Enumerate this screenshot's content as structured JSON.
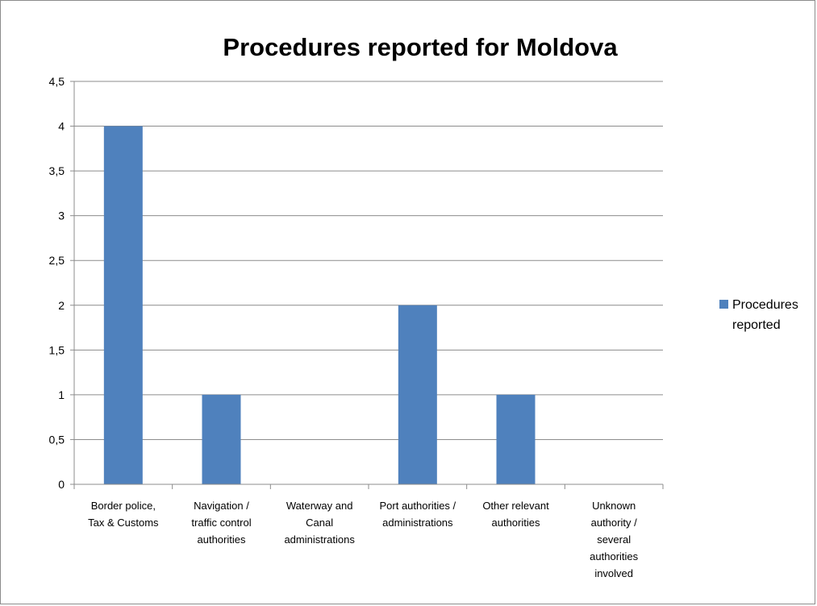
{
  "chart_data": {
    "type": "bar",
    "title": "Procedures reported for Moldova",
    "xlabel": "",
    "ylabel": "",
    "categories": [
      "Border police, Tax & Customs",
      "Navigation / traffic control authorities",
      "Waterway and Canal administrations",
      "Port authorities / administrations",
      "Other relevant authorities",
      "Unknown authority / several authorities involved"
    ],
    "category_lines": [
      [
        "Border police,",
        "Tax & Customs"
      ],
      [
        "Navigation /",
        "traffic control",
        "authorities"
      ],
      [
        "Waterway and",
        "Canal",
        "administrations"
      ],
      [
        "Port authorities /",
        "administrations"
      ],
      [
        "Other relevant",
        "authorities"
      ],
      [
        "Unknown",
        "authority /",
        "several",
        "authorities",
        "involved"
      ]
    ],
    "series": [
      {
        "name": "Procedures reported",
        "legend_lines": [
          "Procedures",
          "reported"
        ],
        "color": "#4f81bd",
        "values": [
          4,
          1,
          0,
          2,
          1,
          0
        ]
      }
    ],
    "ylim": [
      0,
      4.5
    ],
    "yticks": [
      0,
      0.5,
      1,
      1.5,
      2,
      2.5,
      3,
      3.5,
      4,
      4.5
    ],
    "ytick_labels": [
      "0",
      "0,5",
      "1",
      "1,5",
      "2",
      "2,5",
      "3",
      "3,5",
      "4",
      "4,5"
    ],
    "grid": true,
    "legend_position": "right"
  }
}
